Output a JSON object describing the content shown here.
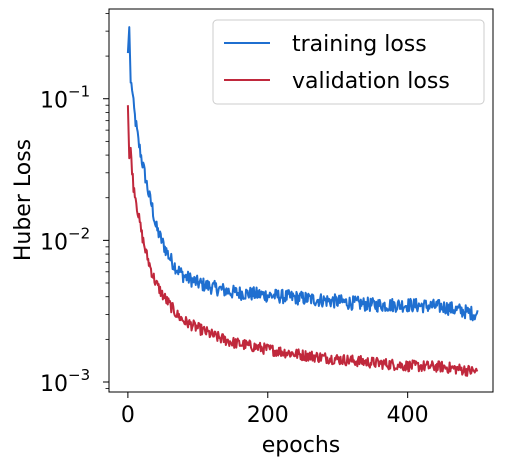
{
  "chart_data": {
    "type": "line",
    "xlabel": "epochs",
    "ylabel": "Huber Loss",
    "xlim": [
      -27,
      522
    ],
    "ylim": [
      0.00085,
      0.43
    ],
    "yscale": "log",
    "x_ticks": [
      0,
      200,
      400
    ],
    "y_ticks": [
      {
        "value": 0.1,
        "base": "10",
        "exp": "−1"
      },
      {
        "value": 0.01,
        "base": "10",
        "exp": "−2"
      },
      {
        "value": 0.001,
        "base": "10",
        "exp": "−3"
      }
    ],
    "grid": false,
    "legend": {
      "position": "top-right"
    },
    "series": [
      {
        "name": "training loss",
        "color": "#1f6fd0",
        "x": [
          0,
          2,
          4,
          6,
          8,
          10,
          15,
          20,
          25,
          30,
          35,
          40,
          50,
          60,
          70,
          80,
          100,
          125,
          150,
          200,
          250,
          300,
          350,
          400,
          450,
          500
        ],
        "y": [
          0.21,
          0.32,
          0.13,
          0.12,
          0.09,
          0.075,
          0.05,
          0.037,
          0.028,
          0.021,
          0.017,
          0.0125,
          0.0095,
          0.0075,
          0.0063,
          0.0056,
          0.005,
          0.0046,
          0.0043,
          0.0041,
          0.0039,
          0.0037,
          0.0035,
          0.0035,
          0.0034,
          0.003
        ]
      },
      {
        "name": "validation loss",
        "color": "#c0283c",
        "x": [
          0,
          2,
          4,
          6,
          8,
          10,
          15,
          20,
          25,
          30,
          35,
          40,
          50,
          60,
          70,
          80,
          100,
          125,
          150,
          200,
          250,
          300,
          350,
          400,
          450,
          500
        ],
        "y": [
          0.09,
          0.038,
          0.045,
          0.032,
          0.024,
          0.022,
          0.015,
          0.011,
          0.0085,
          0.007,
          0.0058,
          0.005,
          0.0041,
          0.0035,
          0.003,
          0.0027,
          0.0024,
          0.0021,
          0.0019,
          0.0017,
          0.00155,
          0.00145,
          0.00137,
          0.0013,
          0.00128,
          0.00118
        ]
      }
    ]
  }
}
